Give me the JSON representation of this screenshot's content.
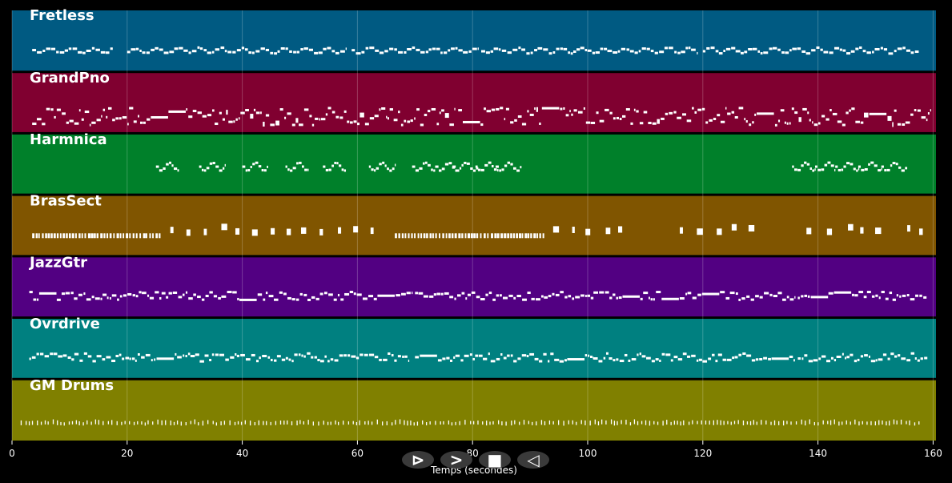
{
  "chart_data": {
    "type": "piano-roll",
    "title": "",
    "xlabel": "Temps (secondes)",
    "ylabel": "",
    "xlim": [
      0,
      160.5
    ],
    "xticks": [
      0,
      20,
      40,
      60,
      80,
      100,
      120,
      140,
      160
    ],
    "grid": true,
    "tracks": [
      {
        "name": "Fretless",
        "color": "#005a82",
        "segments": [
          {
            "start": 3.5,
            "end": 17.5,
            "style": "melody"
          },
          {
            "start": 20,
            "end": 58,
            "style": "melody"
          },
          {
            "start": 59,
            "end": 81,
            "style": "melody"
          },
          {
            "start": 81.5,
            "end": 119,
            "style": "melody"
          },
          {
            "start": 120,
            "end": 157.5,
            "style": "melody"
          }
        ]
      },
      {
        "name": "GrandPno",
        "color": "#800030",
        "segments": [
          {
            "start": 3.5,
            "end": 77,
            "style": "dense"
          },
          {
            "start": 77.5,
            "end": 159.5,
            "style": "dense"
          }
        ]
      },
      {
        "name": "Harmnica",
        "color": "#00802a",
        "segments": [
          {
            "start": 25,
            "end": 29,
            "style": "phrase"
          },
          {
            "start": 32.5,
            "end": 37,
            "style": "phrase"
          },
          {
            "start": 40,
            "end": 44.5,
            "style": "phrase"
          },
          {
            "start": 47.5,
            "end": 51.5,
            "style": "phrase"
          },
          {
            "start": 54,
            "end": 58,
            "style": "phrase"
          },
          {
            "start": 62,
            "end": 66.5,
            "style": "phrase"
          },
          {
            "start": 69.5,
            "end": 73.5,
            "style": "phrase"
          },
          {
            "start": 73.5,
            "end": 77,
            "style": "phrase"
          },
          {
            "start": 76.5,
            "end": 81,
            "style": "phrase"
          },
          {
            "start": 80.5,
            "end": 84.5,
            "style": "phrase"
          },
          {
            "start": 84,
            "end": 88.5,
            "style": "phrase"
          },
          {
            "start": 135.5,
            "end": 139.5,
            "style": "phrase"
          },
          {
            "start": 139.5,
            "end": 143,
            "style": "phrase"
          },
          {
            "start": 143,
            "end": 147,
            "style": "phrase"
          },
          {
            "start": 147,
            "end": 151,
            "style": "phrase"
          },
          {
            "start": 151,
            "end": 155.5,
            "style": "phrase"
          }
        ]
      },
      {
        "name": "BrasSect",
        "color": "#805500",
        "segments": [
          {
            "start": 3.5,
            "end": 26,
            "style": "stabs"
          },
          {
            "start": 27.5,
            "end": 64,
            "style": "blocks"
          },
          {
            "start": 66.5,
            "end": 92.5,
            "style": "stabs"
          },
          {
            "start": 94,
            "end": 106,
            "style": "blocks"
          },
          {
            "start": 116,
            "end": 129,
            "style": "blocks"
          },
          {
            "start": 138,
            "end": 152.5,
            "style": "blocks"
          },
          {
            "start": 155.5,
            "end": 159.5,
            "style": "blocks"
          }
        ]
      },
      {
        "name": "JazzGtr",
        "color": "#520082",
        "segments": [
          {
            "start": 3,
            "end": 69.5,
            "style": "guitar"
          },
          {
            "start": 70,
            "end": 101,
            "style": "guitar"
          },
          {
            "start": 101,
            "end": 136,
            "style": "guitar"
          },
          {
            "start": 136.5,
            "end": 159,
            "style": "guitar"
          }
        ]
      },
      {
        "name": "Ovrdrive",
        "color": "#008080",
        "segments": [
          {
            "start": 3,
            "end": 69,
            "style": "guitar"
          },
          {
            "start": 70,
            "end": 101,
            "style": "guitar"
          },
          {
            "start": 101,
            "end": 136,
            "style": "guitar"
          },
          {
            "start": 136.5,
            "end": 159,
            "style": "guitar"
          }
        ]
      },
      {
        "name": "GM Drums",
        "color": "#808000",
        "segments": [
          {
            "start": 1.5,
            "end": 158,
            "style": "drums"
          }
        ]
      }
    ]
  },
  "controls": {
    "items": [
      {
        "name": "play-button",
        "glyph": "⊳"
      },
      {
        "name": "forward-button",
        "glyph": ">"
      },
      {
        "name": "stop-button",
        "glyph": "■"
      },
      {
        "name": "back-button",
        "glyph": "◁"
      }
    ],
    "button_color": "#3a3a3a"
  }
}
